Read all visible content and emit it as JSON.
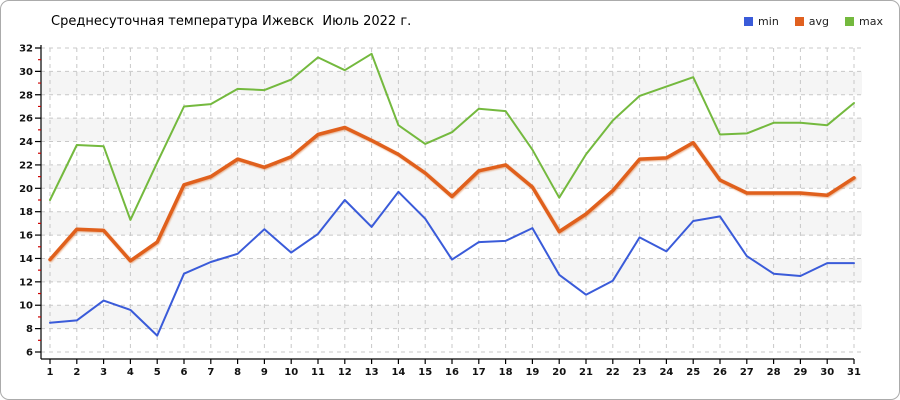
{
  "window": {
    "title": "Среднесуточная температура Ижевск  Июль 2022 г."
  },
  "chart_data": {
    "type": "line",
    "title": "Среднесуточная температура Ижевск  Июль 2022 г.",
    "xlabel": "",
    "ylabel": "",
    "x": [
      1,
      2,
      3,
      4,
      5,
      6,
      7,
      8,
      9,
      10,
      11,
      12,
      13,
      14,
      15,
      16,
      17,
      18,
      19,
      20,
      21,
      22,
      23,
      24,
      25,
      26,
      27,
      28,
      29,
      30,
      31
    ],
    "ylim": [
      6,
      32
    ],
    "ytick_step": 2,
    "grid": "dashed",
    "legend_position": "top-right",
    "band_color": "#f5f5f5",
    "grid_color": "#c8c8c8",
    "axis_color": "#000000",
    "minor_tick_color": "#cc0000",
    "series": [
      {
        "name": "min",
        "color": "#3a5bd9",
        "width": 2,
        "values": [
          8.5,
          8.7,
          10.4,
          9.6,
          7.4,
          12.7,
          13.7,
          14.4,
          16.5,
          14.5,
          16.1,
          19.0,
          16.7,
          19.7,
          17.4,
          13.9,
          15.4,
          15.5,
          16.6,
          12.6,
          10.9,
          12.1,
          15.8,
          14.6,
          17.2,
          17.6,
          14.2,
          12.7,
          12.5,
          13.6,
          13.6
        ]
      },
      {
        "name": "avg",
        "color": "#e0601f",
        "width": 3.5,
        "values": [
          13.9,
          16.5,
          16.4,
          13.8,
          15.4,
          20.3,
          21.0,
          22.5,
          21.8,
          22.7,
          24.6,
          25.2,
          24.1,
          22.9,
          21.3,
          19.3,
          21.5,
          22.0,
          20.1,
          16.3,
          17.8,
          19.8,
          22.5,
          22.6,
          23.9,
          20.7,
          19.6,
          19.6,
          19.6,
          19.4,
          20.9
        ]
      },
      {
        "name": "max",
        "color": "#74b93e",
        "width": 2,
        "values": [
          19.0,
          23.7,
          23.6,
          17.3,
          22.2,
          27.0,
          27.2,
          28.5,
          28.4,
          29.3,
          31.2,
          30.1,
          31.5,
          25.4,
          23.8,
          24.8,
          26.8,
          26.6,
          23.3,
          19.2,
          22.9,
          25.8,
          27.9,
          28.7,
          29.5,
          24.6,
          24.7,
          25.6,
          25.6,
          25.4,
          27.3
        ]
      }
    ]
  }
}
